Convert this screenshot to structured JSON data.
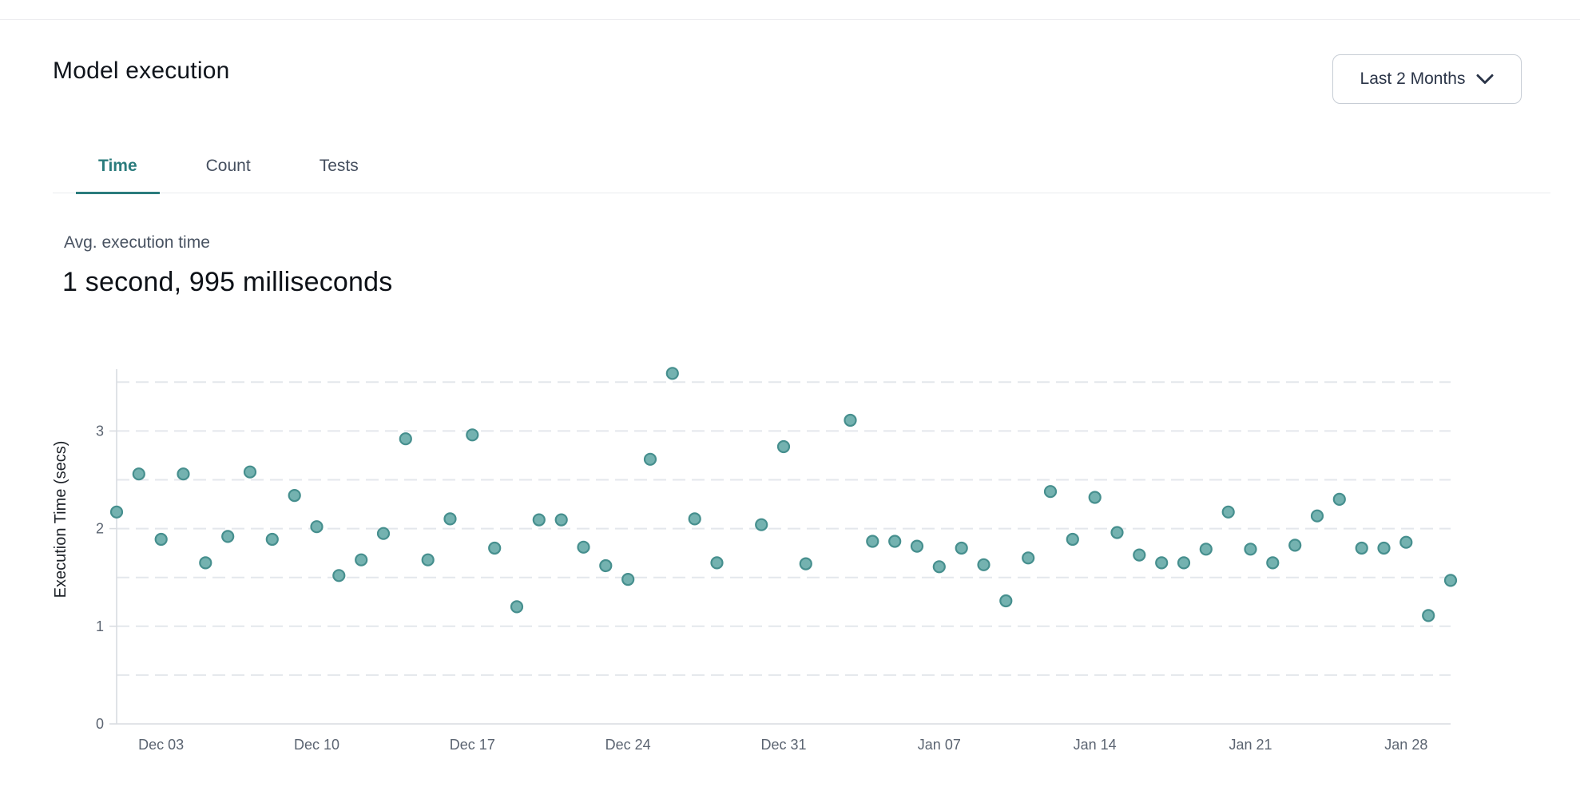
{
  "header": {
    "title": "Model execution",
    "range_selector": {
      "value": "Last 2 Months",
      "chevron_icon": "chevron-down-icon"
    }
  },
  "tabs": [
    {
      "label": "Time",
      "active": true
    },
    {
      "label": "Count",
      "active": false
    },
    {
      "label": "Tests",
      "active": false
    }
  ],
  "stat": {
    "label": "Avg. execution time",
    "value": "1 second, 995 milliseconds"
  },
  "colors": {
    "accent_teal": "#2b7c7d",
    "point_fill": "#74b2b0",
    "point_stroke": "#468f8e",
    "grid": "#e4e7ec",
    "axis": "#d9dce1",
    "tick_text": "#5b6471"
  },
  "chart_data": {
    "type": "scatter",
    "title": "",
    "xlabel": "",
    "ylabel": "Execution Time (secs)",
    "ylim": [
      0,
      3.65
    ],
    "yticks": [
      0,
      1,
      2,
      3
    ],
    "grid_step": 0.5,
    "grid_style": "dashed",
    "legend": "none",
    "x_ticks": [
      "Dec 03",
      "Dec 10",
      "Dec 17",
      "Dec 24",
      "Dec 31",
      "Jan 07",
      "Jan 14",
      "Jan 21",
      "Jan 28"
    ],
    "points": [
      {
        "date": "Dec 01",
        "secs": 2.17
      },
      {
        "date": "Dec 02",
        "secs": 2.56
      },
      {
        "date": "Dec 03",
        "secs": 1.89
      },
      {
        "date": "Dec 04",
        "secs": 2.56
      },
      {
        "date": "Dec 05",
        "secs": 1.65
      },
      {
        "date": "Dec 06",
        "secs": 1.92
      },
      {
        "date": "Dec 07",
        "secs": 2.58
      },
      {
        "date": "Dec 08",
        "secs": 1.89
      },
      {
        "date": "Dec 09",
        "secs": 2.34
      },
      {
        "date": "Dec 10",
        "secs": 2.02
      },
      {
        "date": "Dec 11",
        "secs": 1.52
      },
      {
        "date": "Dec 12",
        "secs": 1.68
      },
      {
        "date": "Dec 13",
        "secs": 1.95
      },
      {
        "date": "Dec 14",
        "secs": 2.92
      },
      {
        "date": "Dec 15",
        "secs": 1.68
      },
      {
        "date": "Dec 16",
        "secs": 2.1
      },
      {
        "date": "Dec 17",
        "secs": 2.96
      },
      {
        "date": "Dec 18",
        "secs": 1.8
      },
      {
        "date": "Dec 19",
        "secs": 1.2
      },
      {
        "date": "Dec 20",
        "secs": 2.09
      },
      {
        "date": "Dec 21",
        "secs": 2.09
      },
      {
        "date": "Dec 22",
        "secs": 1.81
      },
      {
        "date": "Dec 23",
        "secs": 1.62
      },
      {
        "date": "Dec 24",
        "secs": 1.48
      },
      {
        "date": "Dec 25",
        "secs": 2.71
      },
      {
        "date": "Dec 26",
        "secs": 3.59
      },
      {
        "date": "Dec 27",
        "secs": 2.1
      },
      {
        "date": "Dec 28",
        "secs": 1.65
      },
      {
        "date": "Dec 30",
        "secs": 2.04
      },
      {
        "date": "Dec 31",
        "secs": 2.84
      },
      {
        "date": "Jan 01",
        "secs": 1.64
      },
      {
        "date": "Jan 03",
        "secs": 3.11
      },
      {
        "date": "Jan 04",
        "secs": 1.87
      },
      {
        "date": "Jan 05",
        "secs": 1.87
      },
      {
        "date": "Jan 06",
        "secs": 1.82
      },
      {
        "date": "Jan 07",
        "secs": 1.61
      },
      {
        "date": "Jan 08",
        "secs": 1.8
      },
      {
        "date": "Jan 09",
        "secs": 1.63
      },
      {
        "date": "Jan 10",
        "secs": 1.26
      },
      {
        "date": "Jan 11",
        "secs": 1.7
      },
      {
        "date": "Jan 12",
        "secs": 2.38
      },
      {
        "date": "Jan 13",
        "secs": 1.89
      },
      {
        "date": "Jan 14",
        "secs": 2.32
      },
      {
        "date": "Jan 15",
        "secs": 1.96
      },
      {
        "date": "Jan 16",
        "secs": 1.73
      },
      {
        "date": "Jan 17",
        "secs": 1.65
      },
      {
        "date": "Jan 18",
        "secs": 1.65
      },
      {
        "date": "Jan 19",
        "secs": 1.79
      },
      {
        "date": "Jan 20",
        "secs": 2.17
      },
      {
        "date": "Jan 21",
        "secs": 1.79
      },
      {
        "date": "Jan 22",
        "secs": 1.65
      },
      {
        "date": "Jan 23",
        "secs": 1.83
      },
      {
        "date": "Jan 24",
        "secs": 2.13
      },
      {
        "date": "Jan 25",
        "secs": 2.3
      },
      {
        "date": "Jan 26",
        "secs": 1.8
      },
      {
        "date": "Jan 27",
        "secs": 1.8
      },
      {
        "date": "Jan 28",
        "secs": 1.86
      },
      {
        "date": "Jan 29",
        "secs": 1.11
      },
      {
        "date": "Jan 30",
        "secs": 1.47
      }
    ]
  }
}
